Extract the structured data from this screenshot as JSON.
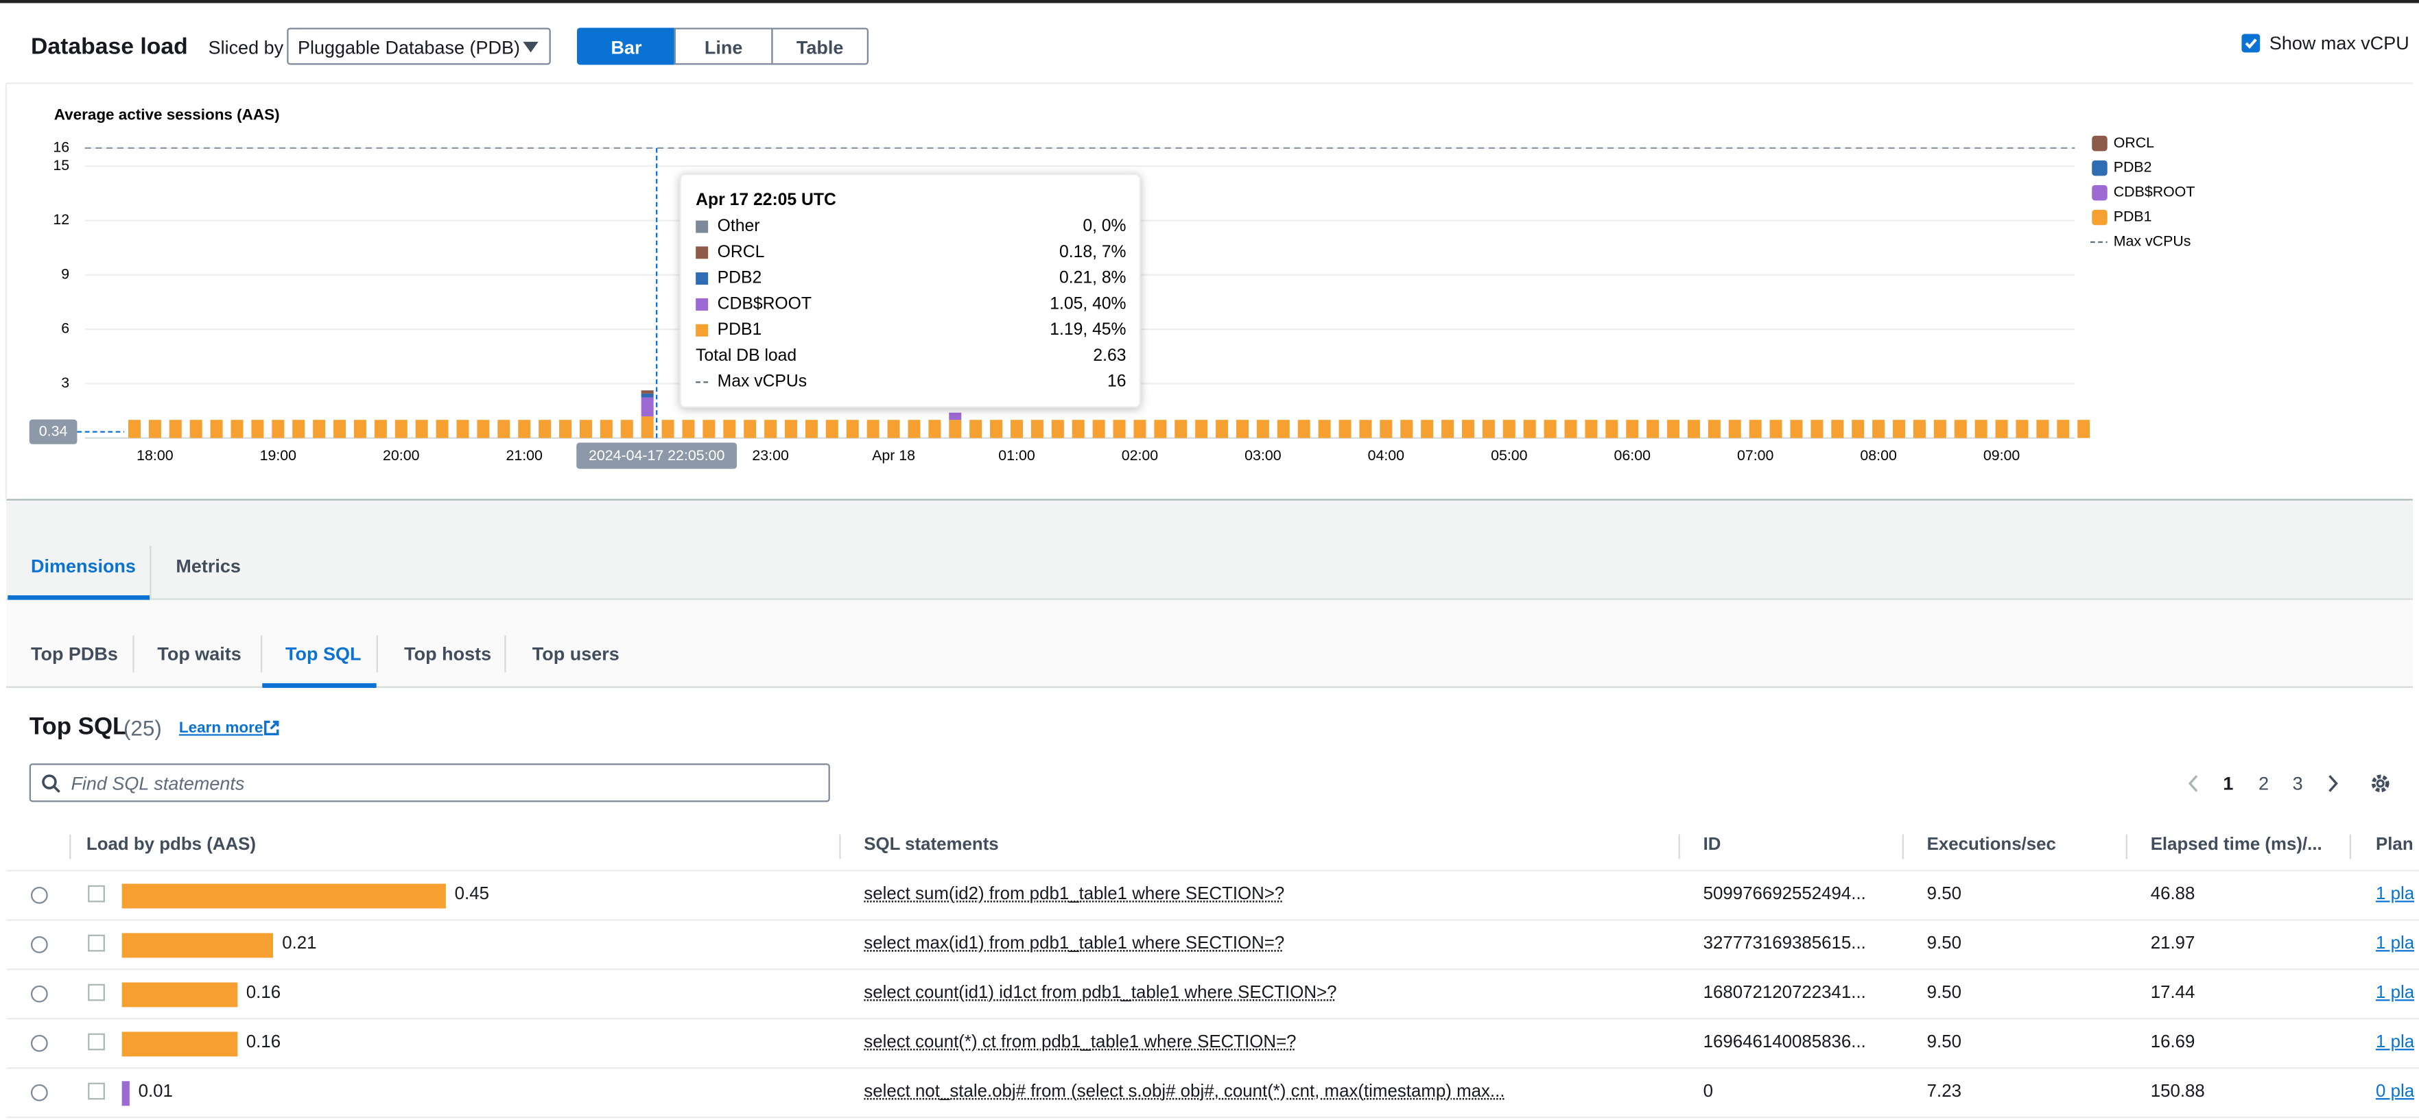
{
  "header": {
    "title": "Database load",
    "sliced_by_label": "Sliced by",
    "slice_select": "Pluggable Database (PDB)",
    "view_buttons": [
      "Bar",
      "Line",
      "Table"
    ],
    "show_max_vcpu": "Show max vCPU"
  },
  "chart_data": {
    "type": "bar",
    "y_title": "Average active sessions (AAS)",
    "categories": [
      null,
      "18:00",
      null,
      null,
      null,
      null,
      null,
      "19:00",
      null,
      null,
      null,
      null,
      null,
      "20:00",
      null,
      null,
      null,
      null,
      null,
      "21:00",
      null,
      null,
      null,
      null,
      null,
      null,
      null,
      null,
      null,
      null,
      null,
      "23:00",
      null,
      null,
      null,
      null,
      null,
      "Apr 18",
      null,
      null,
      null,
      null,
      null,
      "01:00",
      null,
      null,
      null,
      null,
      null,
      "02:00",
      null,
      null,
      null,
      null,
      null,
      "03:00",
      null,
      null,
      null,
      null,
      null,
      "04:00",
      null,
      null,
      null,
      null,
      null,
      "05:00",
      null,
      null,
      null,
      null,
      null,
      "06:00",
      null,
      null,
      null,
      null,
      null,
      "07:00",
      null,
      null,
      null,
      null,
      null,
      "08:00",
      null,
      null,
      null,
      null,
      null,
      "09:00",
      null,
      null,
      null,
      null
    ],
    "series": [
      {
        "name": "ORCL",
        "color": "#8d5a4a",
        "values": [
          0,
          0,
          0,
          0,
          0,
          0,
          0,
          0,
          0,
          0,
          0,
          0,
          0,
          0,
          0,
          0,
          0,
          0,
          0,
          0,
          0,
          0,
          0,
          0,
          0,
          0.18,
          0,
          0,
          0,
          0,
          0,
          0,
          0,
          0,
          0,
          0,
          0,
          0,
          0,
          0,
          0,
          0,
          0,
          0,
          0,
          0,
          0,
          0,
          0,
          0,
          0,
          0,
          0,
          0,
          0,
          0,
          0,
          0,
          0,
          0,
          0,
          0,
          0,
          0,
          0,
          0,
          0,
          0,
          0,
          0,
          0,
          0,
          0,
          0,
          0,
          0,
          0,
          0,
          0,
          0,
          0,
          0,
          0,
          0,
          0,
          0,
          0,
          0,
          0,
          0,
          0,
          0,
          0,
          0,
          0,
          0
        ]
      },
      {
        "name": "PDB2",
        "color": "#2e6db4",
        "values": [
          0,
          0,
          0,
          0,
          0,
          0,
          0,
          0,
          0,
          0,
          0,
          0,
          0,
          0,
          0,
          0,
          0,
          0,
          0,
          0,
          0,
          0,
          0,
          0,
          0,
          0.21,
          0,
          0,
          0,
          0,
          0,
          0,
          0,
          0,
          0,
          0,
          0,
          0,
          0,
          0,
          0,
          0,
          0,
          0,
          0,
          0,
          0,
          0,
          0,
          0,
          0,
          0,
          0,
          0,
          0,
          0,
          0,
          0,
          0,
          0,
          0,
          0,
          0,
          0,
          0,
          0,
          0,
          0,
          0,
          0,
          0,
          0,
          0,
          0,
          0,
          0,
          0,
          0,
          0,
          0,
          0,
          0,
          0,
          0,
          0,
          0,
          0,
          0,
          0,
          0,
          0,
          0,
          0,
          0,
          0,
          0
        ]
      },
      {
        "name": "CDB$ROOT",
        "color": "#9c6ad2",
        "values": [
          0,
          0,
          0,
          0,
          0,
          0,
          0,
          0,
          0,
          0,
          0,
          0,
          0,
          0,
          0,
          0,
          0,
          0,
          0,
          0,
          0,
          0,
          0,
          0,
          0,
          1.05,
          0,
          0,
          0,
          0,
          0,
          0,
          0,
          0,
          0,
          0,
          0,
          0,
          0,
          0,
          0.4,
          0,
          0,
          0,
          0,
          0,
          0,
          0,
          0,
          0,
          0,
          0,
          0,
          0,
          0,
          0,
          0,
          0,
          0,
          0,
          0,
          0,
          0,
          0,
          0,
          0,
          0,
          0,
          0,
          0,
          0,
          0,
          0,
          0,
          0,
          0,
          0,
          0,
          0,
          0,
          0,
          0,
          0,
          0,
          0,
          0,
          0,
          0,
          0,
          0,
          0,
          0,
          0,
          0,
          0,
          0
        ]
      },
      {
        "name": "PDB1",
        "color": "#f5a031",
        "values": [
          1,
          1,
          1,
          1,
          1,
          1,
          1,
          1,
          1,
          1,
          1,
          1,
          1,
          1,
          1,
          1,
          1,
          1,
          1,
          1,
          1,
          1,
          1,
          1,
          1,
          1.19,
          1,
          1,
          1,
          1,
          1,
          1,
          1,
          1,
          1,
          1,
          1,
          1,
          1,
          1,
          1,
          1,
          1,
          1,
          1,
          1,
          1,
          1,
          1,
          1,
          1,
          1,
          1,
          1,
          1,
          1,
          1,
          1,
          1,
          1,
          1,
          1,
          1,
          1,
          1,
          1,
          1,
          1,
          1,
          1,
          1,
          1,
          1,
          1,
          1,
          1,
          1,
          1,
          1,
          1,
          1,
          1,
          1,
          1,
          1,
          1,
          1,
          1,
          1,
          1,
          1,
          1,
          1,
          1,
          1,
          1
        ]
      }
    ],
    "ylim": [
      0,
      16
    ],
    "yticks": [
      3,
      6,
      9,
      12,
      15,
      16
    ],
    "grid": true,
    "max_vcpu": 16,
    "max_vcpu_name": "Max vCPUs",
    "cursor_x_label": "2024-04-17 22:05:00",
    "cursor_y": 0.34,
    "tooltip": {
      "title": "Apr 17 22:05 UTC",
      "rows": [
        {
          "name": "Other",
          "color": "#7d8998",
          "label": "0, 0%"
        },
        {
          "name": "ORCL",
          "color": "#8d5a4a",
          "label": "0.18, 7%"
        },
        {
          "name": "PDB2",
          "color": "#2e6db4",
          "label": "0.21, 8%"
        },
        {
          "name": "CDB$ROOT",
          "color": "#9c6ad2",
          "label": "1.05, 40%"
        },
        {
          "name": "PDB1",
          "color": "#f5a031",
          "label": "1.19, 45%"
        }
      ],
      "total_label": "Total DB load",
      "total": 2.63
    }
  },
  "tabs": [
    "Dimensions",
    "Metrics"
  ],
  "subtabs": [
    "Top PDBs",
    "Top waits",
    "Top SQL",
    "Top hosts",
    "Top users"
  ],
  "top_sql": {
    "title": "Top SQL",
    "count": "(25)",
    "learn_more": "Learn more",
    "search_placeholder": "Find SQL statements",
    "pages": [
      "1",
      "2",
      "3"
    ],
    "columns": [
      "Load by pdbs (AAS)",
      "SQL statements",
      "ID",
      "Executions/sec",
      "Elapsed time (ms)/...",
      "Plan"
    ],
    "rows": [
      {
        "load": 0.45,
        "load_color": "#f5a031",
        "sql": "select sum(id2) from pdb1_table1 where SECTION>?",
        "id": "509976692552494...",
        "executions": "9.50",
        "elapsed": "46.88",
        "plans": "1 pla"
      },
      {
        "load": 0.21,
        "load_color": "#f5a031",
        "sql": "select max(id1) from pdb1_table1 where SECTION=?",
        "id": "327773169385615...",
        "executions": "9.50",
        "elapsed": "21.97",
        "plans": "1 pla"
      },
      {
        "load": 0.16,
        "load_color": "#f5a031",
        "sql": "select count(id1) id1ct from pdb1_table1 where SECTION>?",
        "id": "168072120722341...",
        "executions": "9.50",
        "elapsed": "17.44",
        "plans": "1 pla"
      },
      {
        "load": 0.16,
        "load_color": "#f5a031",
        "sql": "select count(*) ct from pdb1_table1 where SECTION=?",
        "id": "169646140085836...",
        "executions": "9.50",
        "elapsed": "16.69",
        "plans": "1 pla"
      },
      {
        "load": 0.01,
        "load_color": "#9c6ad2",
        "sql": "select not_stale.obj# from (select s.obj# obj#, count(*) cnt, max(timestamp) max...",
        "id": "0",
        "executions": "7.23",
        "elapsed": "150.88",
        "plans": "0 pla"
      }
    ]
  }
}
